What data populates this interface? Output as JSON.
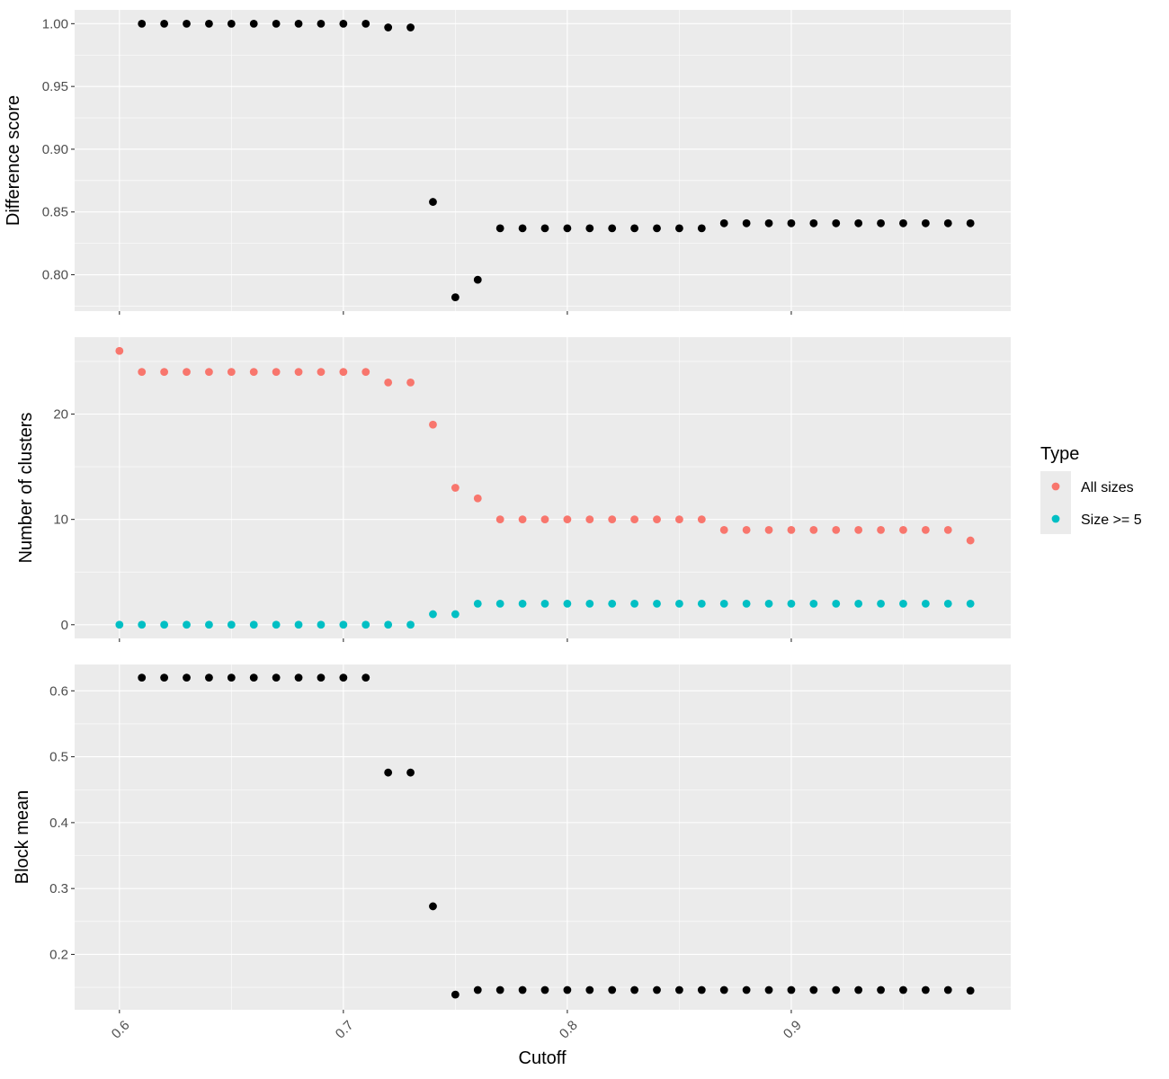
{
  "colors": {
    "panel_bg": "#ebebeb",
    "grid_major": "#ffffff",
    "tick": "#333333",
    "point_black": "#000000",
    "all_sizes": "#f8766d",
    "size_ge_5": "#00bfc4"
  },
  "x_axis": {
    "label": "Cutoff",
    "ticks": [
      0.6,
      0.7,
      0.8,
      0.9
    ],
    "tick_labels": [
      "0.6",
      "0.7",
      "0.8",
      "0.9"
    ],
    "range": [
      0.58,
      0.998
    ]
  },
  "legend": {
    "title": "Type",
    "items": [
      {
        "label": "All sizes",
        "color": "#f8766d"
      },
      {
        "label": "Size >= 5",
        "color": "#00bfc4"
      }
    ]
  },
  "chart_data": [
    {
      "type": "scatter",
      "ylabel": "Difference score",
      "ylim": [
        0.771,
        1.011
      ],
      "yticks": [
        0.8,
        0.85,
        0.9,
        0.95,
        1.0
      ],
      "ytick_labels": [
        "0.80",
        "0.85",
        "0.90",
        "0.95",
        "1.00"
      ],
      "series": [
        {
          "color": "#000000",
          "x": [
            0.61,
            0.62,
            0.63,
            0.64,
            0.65,
            0.66,
            0.67,
            0.68,
            0.69,
            0.7,
            0.71,
            0.72,
            0.73,
            0.74,
            0.75,
            0.76,
            0.77,
            0.78,
            0.79,
            0.8,
            0.81,
            0.82,
            0.83,
            0.84,
            0.85,
            0.86,
            0.87,
            0.88,
            0.89,
            0.9,
            0.91,
            0.92,
            0.93,
            0.94,
            0.95,
            0.96,
            0.97,
            0.98
          ],
          "y": [
            1.0,
            1.0,
            1.0,
            1.0,
            1.0,
            1.0,
            1.0,
            1.0,
            1.0,
            1.0,
            1.0,
            0.997,
            0.997,
            0.858,
            0.782,
            0.796,
            0.837,
            0.837,
            0.837,
            0.837,
            0.837,
            0.837,
            0.837,
            0.837,
            0.837,
            0.837,
            0.841,
            0.841,
            0.841,
            0.841,
            0.841,
            0.841,
            0.841,
            0.841,
            0.841,
            0.841,
            0.841,
            0.841
          ]
        }
      ]
    },
    {
      "type": "scatter",
      "ylabel": "Number of clusters",
      "ylim": [
        -1.3,
        27.3
      ],
      "yticks": [
        0,
        10,
        20
      ],
      "ytick_labels": [
        "0",
        "10",
        "20"
      ],
      "series": [
        {
          "name": "All sizes",
          "color": "#f8766d",
          "x": [
            0.6,
            0.61,
            0.62,
            0.63,
            0.64,
            0.65,
            0.66,
            0.67,
            0.68,
            0.69,
            0.7,
            0.71,
            0.72,
            0.73,
            0.74,
            0.75,
            0.76,
            0.77,
            0.78,
            0.79,
            0.8,
            0.81,
            0.82,
            0.83,
            0.84,
            0.85,
            0.86,
            0.87,
            0.88,
            0.89,
            0.9,
            0.91,
            0.92,
            0.93,
            0.94,
            0.95,
            0.96,
            0.97,
            0.98
          ],
          "y": [
            26,
            24,
            24,
            24,
            24,
            24,
            24,
            24,
            24,
            24,
            24,
            24,
            23,
            23,
            19,
            13,
            12,
            10,
            10,
            10,
            10,
            10,
            10,
            10,
            10,
            10,
            10,
            9,
            9,
            9,
            9,
            9,
            9,
            9,
            9,
            9,
            9,
            9,
            8
          ]
        },
        {
          "name": "Size >= 5",
          "color": "#00bfc4",
          "x": [
            0.6,
            0.61,
            0.62,
            0.63,
            0.64,
            0.65,
            0.66,
            0.67,
            0.68,
            0.69,
            0.7,
            0.71,
            0.72,
            0.73,
            0.74,
            0.75,
            0.76,
            0.77,
            0.78,
            0.79,
            0.8,
            0.81,
            0.82,
            0.83,
            0.84,
            0.85,
            0.86,
            0.87,
            0.88,
            0.89,
            0.9,
            0.91,
            0.92,
            0.93,
            0.94,
            0.95,
            0.96,
            0.97,
            0.98
          ],
          "y": [
            0,
            0,
            0,
            0,
            0,
            0,
            0,
            0,
            0,
            0,
            0,
            0,
            0,
            0,
            1,
            1,
            2,
            2,
            2,
            2,
            2,
            2,
            2,
            2,
            2,
            2,
            2,
            2,
            2,
            2,
            2,
            2,
            2,
            2,
            2,
            2,
            2,
            2,
            2
          ]
        }
      ]
    },
    {
      "type": "scatter",
      "ylabel": "Block mean",
      "ylim": [
        0.116,
        0.64
      ],
      "yticks": [
        0.2,
        0.3,
        0.4,
        0.5,
        0.6
      ],
      "ytick_labels": [
        "0.2",
        "0.3",
        "0.4",
        "0.5",
        "0.6"
      ],
      "series": [
        {
          "color": "#000000",
          "x": [
            0.61,
            0.62,
            0.63,
            0.64,
            0.65,
            0.66,
            0.67,
            0.68,
            0.69,
            0.7,
            0.71,
            0.72,
            0.73,
            0.74,
            0.75,
            0.76,
            0.77,
            0.78,
            0.79,
            0.8,
            0.81,
            0.82,
            0.83,
            0.84,
            0.85,
            0.86,
            0.87,
            0.88,
            0.89,
            0.9,
            0.91,
            0.92,
            0.93,
            0.94,
            0.95,
            0.96,
            0.97,
            0.98
          ],
          "y": [
            0.62,
            0.62,
            0.62,
            0.62,
            0.62,
            0.62,
            0.62,
            0.62,
            0.62,
            0.62,
            0.62,
            0.476,
            0.476,
            0.273,
            0.139,
            0.146,
            0.146,
            0.146,
            0.146,
            0.146,
            0.146,
            0.146,
            0.146,
            0.146,
            0.146,
            0.146,
            0.146,
            0.146,
            0.146,
            0.146,
            0.146,
            0.146,
            0.146,
            0.146,
            0.146,
            0.146,
            0.146,
            0.145
          ]
        }
      ]
    }
  ]
}
